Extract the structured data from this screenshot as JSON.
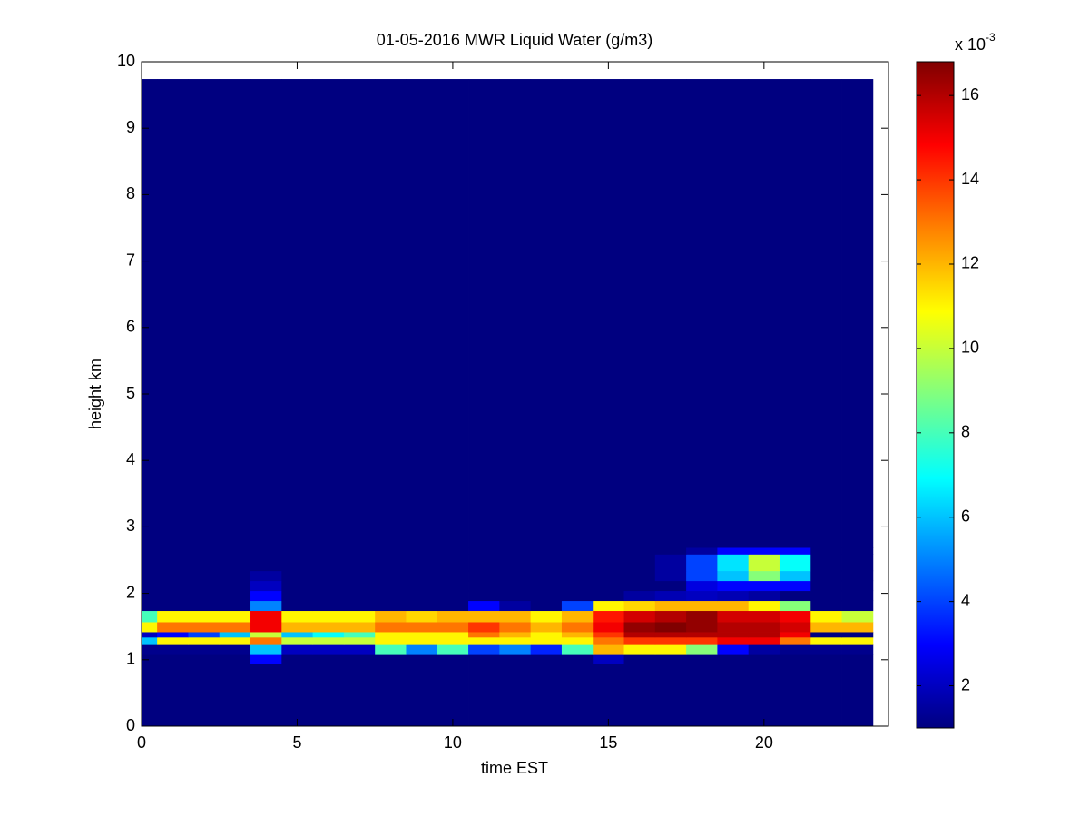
{
  "chart_data": {
    "type": "heatmap",
    "title": "01-05-2016 MWR Liquid Water (g/m3)",
    "x_label": "time EST",
    "y_label": "height km",
    "xlim": [
      0,
      24
    ],
    "xticks": [
      0,
      5,
      10,
      15,
      20
    ],
    "ylim": [
      0,
      10
    ],
    "yticks": [
      0,
      1,
      2,
      3,
      4,
      5,
      6,
      7,
      8,
      9,
      10
    ],
    "x_edges": [
      0,
      0.5,
      1.5,
      2.5,
      3.5,
      4.5,
      5.5,
      6.5,
      7.5,
      8.5,
      9.5,
      10.5,
      11.5,
      12.5,
      13.5,
      14.5,
      15.5,
      16.5,
      17.5,
      18.5,
      19.5,
      20.5,
      21.5,
      22.5,
      23.5
    ],
    "y_edges": [
      0,
      0.94,
      1.09,
      1.24,
      1.34,
      1.42,
      1.57,
      1.74,
      1.89,
      2.04,
      2.19,
      2.34,
      2.59,
      2.69,
      9.74
    ],
    "z": [
      [
        1,
        1,
        1,
        1,
        1,
        1,
        1,
        1,
        1,
        1,
        1,
        1,
        1,
        1,
        1,
        1,
        1,
        1,
        1,
        1,
        1,
        1,
        1,
        1
      ],
      [
        1,
        1,
        1,
        1,
        3,
        1,
        1,
        1,
        1,
        1,
        1,
        1,
        1,
        1,
        1,
        2,
        1,
        1,
        1,
        1,
        1,
        1,
        1,
        1
      ],
      [
        1.2,
        1.2,
        1.2,
        1.2,
        6,
        2,
        2,
        2,
        8,
        5,
        8,
        4,
        5,
        3.5,
        8,
        12,
        11,
        11,
        9,
        3,
        1.5,
        1.2,
        1.2,
        1.2
      ],
      [
        6,
        11,
        11,
        11,
        13,
        10,
        10,
        10,
        11,
        11,
        11,
        11,
        11,
        11,
        11,
        13,
        14,
        14,
        14,
        15,
        15,
        13,
        11,
        11
      ],
      [
        2,
        3,
        4,
        6,
        10,
        6,
        7,
        8,
        11,
        11,
        11,
        13,
        12,
        11,
        12,
        14,
        16,
        16,
        16,
        16,
        16,
        15,
        1,
        1
      ],
      [
        11,
        13,
        13,
        13,
        15,
        12,
        12,
        12,
        13,
        13,
        13,
        14,
        13,
        12,
        13,
        15,
        16.5,
        16.8,
        16.5,
        16,
        16,
        15.5,
        12,
        12
      ],
      [
        8,
        11,
        11,
        11,
        15,
        11,
        11,
        11,
        12,
        11.5,
        12,
        12,
        12,
        11,
        12,
        14.5,
        15.5,
        16,
        16.5,
        15.5,
        15.5,
        15,
        11,
        10
      ],
      [
        1,
        1,
        1,
        1,
        5,
        1,
        1,
        1,
        1,
        1,
        1,
        3,
        1.5,
        1,
        4,
        11,
        11.5,
        12,
        12,
        12,
        11,
        9,
        1,
        1
      ],
      [
        1,
        1,
        1,
        1,
        3,
        1,
        1,
        1,
        1,
        1,
        1,
        1,
        1,
        1,
        1,
        1,
        1.5,
        1.8,
        2,
        1.8,
        1.5,
        1,
        1,
        1
      ],
      [
        1,
        1,
        1,
        1,
        2,
        1,
        1,
        1,
        1,
        1,
        1,
        1,
        1,
        1,
        1,
        1,
        1,
        1,
        2.5,
        3,
        3,
        3,
        1,
        1
      ],
      [
        1,
        1,
        1,
        1,
        1.5,
        1,
        1,
        1,
        1,
        1,
        1,
        1,
        1,
        1,
        1,
        1,
        1,
        1.5,
        4,
        6,
        9,
        6,
        1,
        1
      ],
      [
        1,
        1,
        1,
        1,
        1,
        1,
        1,
        1,
        1,
        1,
        1,
        1,
        1,
        1,
        1,
        1,
        1,
        1.5,
        4,
        6.5,
        10,
        7,
        1,
        1
      ],
      [
        1,
        1,
        1,
        1,
        1,
        1,
        1,
        1,
        1,
        1,
        1,
        1,
        1,
        1,
        1,
        1,
        1,
        1,
        1.5,
        3,
        3,
        3,
        1,
        1
      ],
      [
        1,
        1,
        1,
        1,
        1,
        1,
        1,
        1,
        1,
        1,
        1,
        1,
        1,
        1,
        1,
        1,
        1,
        1,
        1,
        1,
        1,
        1,
        1,
        1
      ]
    ],
    "colormap": "jet",
    "clim": [
      1,
      16.8
    ],
    "cticks": [
      2,
      4,
      6,
      8,
      10,
      12,
      14,
      16
    ],
    "colorbar_label": {
      "base": "x 10",
      "exponent": "-3"
    }
  }
}
